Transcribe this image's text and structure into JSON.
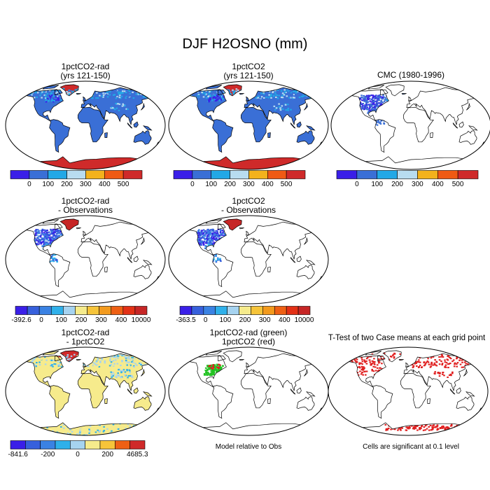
{
  "title": "DJF H2OSNO (mm)",
  "colors": {
    "land_default": "#3a6fd6",
    "snow_palette_7": [
      "#3a1fe8",
      "#3a6fd6",
      "#22a8e6",
      "#b8dcf0",
      "#f3b21c",
      "#ef5a14",
      "#cf2a2a"
    ],
    "diff_palette_11": [
      "#3a1fe8",
      "#3760dc",
      "#3a82e3",
      "#2fb0ea",
      "#a6d3f0",
      "#f6eb8c",
      "#f6c43a",
      "#f39a1d",
      "#ee6014",
      "#e33116",
      "#c62626"
    ],
    "diff2_palette_9": [
      "#3a1fe8",
      "#3760dc",
      "#3a82e3",
      "#2fb0ea",
      "#a6d3f0",
      "#f6eb8c",
      "#f6c43a",
      "#ee6014",
      "#cf2a2a"
    ],
    "model_green": "#22c222",
    "significance_red": "#e02020",
    "neutral_yellow": "#f6eb8c"
  },
  "panels": {
    "p1": {
      "title_line1": "1pctCO2-rad",
      "title_line2": "(yrs 121-150)"
    },
    "p2": {
      "title_line1": "1pctCO2",
      "title_line2": "(yrs 121-150)"
    },
    "p3": {
      "title_line1": "CMC (1980-1996)",
      "title_line2": ""
    },
    "p4": {
      "title_line1": "1pctCO2-rad",
      "title_line2": "- Observations"
    },
    "p5": {
      "title_line1": "1pctCO2",
      "title_line2": "- Observations"
    },
    "p7": {
      "title_line1": "1pctCO2-rad",
      "title_line2": "- 1pctCO2"
    },
    "p8": {
      "title_line1": "1pctCO2-rad (green)",
      "title_line2": "1pctCO2 (red)",
      "note": "Model relative to Obs"
    },
    "p9": {
      "title_line1": "T-Test of two Case means at each grid point",
      "title_line2": "",
      "note": "Cells are significant at 0.1 level"
    }
  },
  "colorbars": {
    "cb1": {
      "labels": [
        "0",
        "100",
        "200",
        "300",
        "400",
        "500"
      ]
    },
    "cb2": {
      "labels": [
        "0",
        "100",
        "200",
        "300",
        "400",
        "500"
      ]
    },
    "cb3": {
      "labels": [
        "0",
        "100",
        "200",
        "300",
        "400",
        "500"
      ]
    },
    "cb4": {
      "labels": [
        "-392.6",
        "0",
        "100",
        "200",
        "300",
        "400",
        "10000"
      ]
    },
    "cb5": {
      "labels": [
        "-363.5",
        "0",
        "100",
        "200",
        "300",
        "400",
        "10000"
      ]
    },
    "cb7": {
      "labels": [
        "-841.6",
        "-200",
        "0",
        "200",
        "4685.3"
      ]
    }
  }
}
